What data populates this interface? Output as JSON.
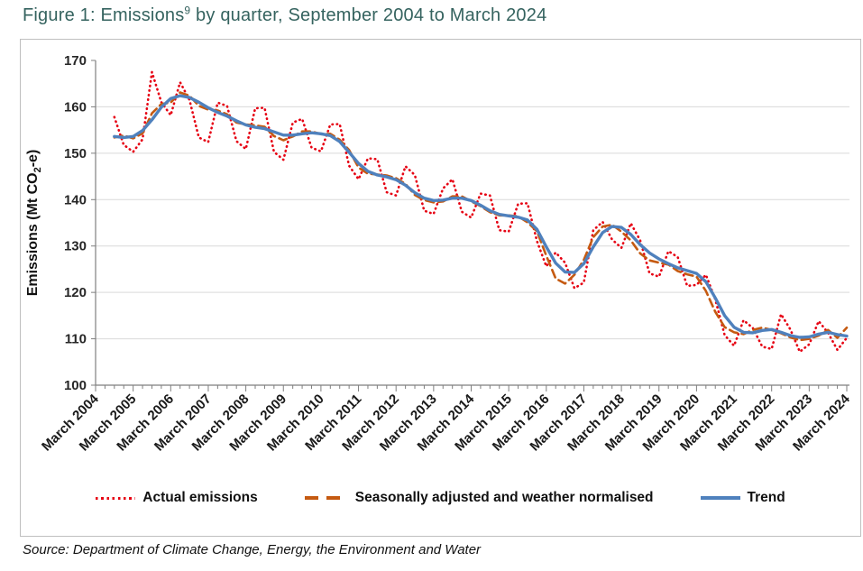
{
  "figure": {
    "title_pre": "Figure 1: Emissions",
    "title_sup": "9",
    "title_post": " by quarter, September 2004 to March 2024",
    "source": "Source: Department of Climate Change, Energy, the Environment and Water"
  },
  "chart_data": {
    "type": "line",
    "title": "Figure 1: Emissions⁹ by quarter, September 2004 to March 2024",
    "xlabel": "",
    "ylabel": "Emissions (Mt CO₂-e)",
    "ylabel_parts": {
      "pre": "Emissions (Mt CO",
      "sub": "2",
      "post": "-e)"
    },
    "ylim": [
      100,
      170
    ],
    "ytick_step": 10,
    "grid": "horizontal",
    "legend_position": "bottom",
    "x_tick_labels": [
      "March 2004",
      "March 2005",
      "March 2006",
      "March 2007",
      "March 2008",
      "March 2009",
      "March 2010",
      "March 2011",
      "March 2012",
      "March 2013",
      "March 2014",
      "March 2015",
      "March 2016",
      "March 2017",
      "March 2018",
      "March 2019",
      "March 2020",
      "March 2021",
      "March 2022",
      "March 2023",
      "March 2024"
    ],
    "start_quarter_offset": 2,
    "x": [
      "Sep 2004",
      "Dec 2004",
      "Mar 2005",
      "Jun 2005",
      "Sep 2005",
      "Dec 2005",
      "Mar 2006",
      "Jun 2006",
      "Sep 2006",
      "Dec 2006",
      "Mar 2007",
      "Jun 2007",
      "Sep 2007",
      "Dec 2007",
      "Mar 2008",
      "Jun 2008",
      "Sep 2008",
      "Dec 2008",
      "Mar 2009",
      "Jun 2009",
      "Sep 2009",
      "Dec 2009",
      "Mar 2010",
      "Jun 2010",
      "Sep 2010",
      "Dec 2010",
      "Mar 2011",
      "Jun 2011",
      "Sep 2011",
      "Dec 2011",
      "Mar 2012",
      "Jun 2012",
      "Sep 2012",
      "Dec 2012",
      "Mar 2013",
      "Jun 2013",
      "Sep 2013",
      "Dec 2013",
      "Mar 2014",
      "Jun 2014",
      "Sep 2014",
      "Dec 2014",
      "Mar 2015",
      "Jun 2015",
      "Sep 2015",
      "Dec 2015",
      "Mar 2016",
      "Jun 2016",
      "Sep 2016",
      "Dec 2016",
      "Mar 2017",
      "Jun 2017",
      "Sep 2017",
      "Dec 2017",
      "Mar 2018",
      "Jun 2018",
      "Sep 2018",
      "Dec 2018",
      "Mar 2019",
      "Jun 2019",
      "Sep 2019",
      "Dec 2019",
      "Mar 2020",
      "Jun 2020",
      "Sep 2020",
      "Dec 2020",
      "Mar 2021",
      "Jun 2021",
      "Sep 2021",
      "Dec 2021",
      "Mar 2022",
      "Jun 2022",
      "Sep 2022",
      "Dec 2022",
      "Mar 2023",
      "Jun 2023",
      "Sep 2023",
      "Dec 2023",
      "Mar 2024"
    ],
    "series": [
      {
        "name": "Actual emissions",
        "key": "actual",
        "color": "#e60012",
        "style": "dotted",
        "values": [
          157.8,
          151.8,
          150.3,
          153.0,
          167.5,
          161.0,
          158.2,
          165.3,
          161.5,
          153.4,
          152.4,
          160.9,
          160.2,
          152.6,
          150.9,
          159.7,
          159.8,
          150.3,
          148.6,
          156.6,
          157.4,
          151.2,
          150.4,
          156.2,
          156.3,
          147.3,
          144.4,
          148.9,
          148.7,
          141.6,
          140.9,
          147.2,
          145.3,
          137.6,
          136.9,
          142.4,
          144.4,
          137.4,
          136.1,
          141.3,
          140.9,
          133.4,
          133.1,
          139.1,
          139.2,
          131.1,
          125.6,
          128.6,
          126.4,
          120.9,
          122.1,
          133.4,
          135.2,
          131.4,
          129.6,
          134.9,
          131.2,
          124.1,
          123.4,
          128.9,
          127.6,
          121.4,
          121.6,
          123.8,
          118.5,
          110.8,
          108.5,
          114.0,
          112.3,
          108.3,
          107.8,
          115.3,
          112.0,
          107.2,
          108.8,
          113.8,
          111.3,
          107.6,
          110.2
        ]
      },
      {
        "name": "Seasonally adjusted and weather normalised",
        "key": "seasonal",
        "color": "#c55a11",
        "style": "dashed",
        "values": [
          153.4,
          153.8,
          153.2,
          154.3,
          158.6,
          160.6,
          160.9,
          163.1,
          162.4,
          160.2,
          159.4,
          159.2,
          158.4,
          156.6,
          156.2,
          156.0,
          155.7,
          153.7,
          152.8,
          153.6,
          154.7,
          154.7,
          154.1,
          154.2,
          152.9,
          150.7,
          146.9,
          145.6,
          145.4,
          145.2,
          144.6,
          143.4,
          141.0,
          139.9,
          139.4,
          139.6,
          140.7,
          140.7,
          139.6,
          138.6,
          137.3,
          136.6,
          136.6,
          136.4,
          135.1,
          133.2,
          127.9,
          123.0,
          121.9,
          123.8,
          127.0,
          131.9,
          134.2,
          134.6,
          133.1,
          131.2,
          128.4,
          126.9,
          126.4,
          126.0,
          124.6,
          123.9,
          123.4,
          120.3,
          115.8,
          112.5,
          111.4,
          111.0,
          111.9,
          112.4,
          111.9,
          111.2,
          110.3,
          109.7,
          110.0,
          110.7,
          111.9,
          110.2,
          112.4
        ]
      },
      {
        "name": "Trend",
        "key": "trend",
        "color": "#4f81bd",
        "style": "solid",
        "values": [
          153.6,
          153.4,
          153.6,
          154.9,
          157.2,
          159.9,
          161.8,
          162.4,
          162.0,
          161.0,
          159.8,
          158.8,
          158.0,
          157.0,
          156.1,
          155.6,
          155.3,
          154.6,
          153.9,
          153.9,
          154.2,
          154.4,
          154.2,
          153.8,
          152.5,
          150.2,
          147.8,
          146.1,
          145.3,
          144.9,
          144.3,
          143.1,
          141.5,
          140.3,
          139.8,
          139.9,
          140.3,
          140.3,
          139.8,
          138.8,
          137.6,
          136.8,
          136.5,
          136.2,
          135.6,
          133.6,
          129.8,
          126.3,
          124.4,
          124.3,
          126.2,
          129.8,
          132.9,
          134.2,
          134.0,
          132.5,
          130.3,
          128.5,
          127.2,
          126.2,
          125.3,
          124.7,
          124.1,
          122.3,
          118.8,
          115.0,
          112.5,
          111.4,
          111.3,
          111.8,
          112.0,
          111.4,
          110.7,
          110.3,
          110.4,
          111.0,
          111.4,
          110.9,
          110.6
        ]
      }
    ]
  }
}
